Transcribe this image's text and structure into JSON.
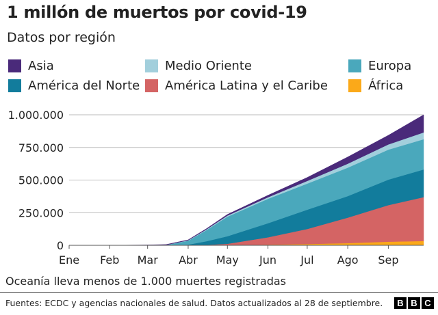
{
  "title": "1 millón de muertos por covid-19",
  "subtitle": "Datos por región",
  "note": "Oceanía lleva menos de 1.000 muertes registradas",
  "source": "Fuentes: ECDC y agencias nacionales de salud. Datos actualizados al 28 de septiembre.",
  "logo": [
    "B",
    "B",
    "C"
  ],
  "chart_data": {
    "type": "area",
    "stacked": true,
    "title": "1 millón de muertos por covid-19",
    "subtitle": "Datos por región",
    "x": [
      "2020-01-01",
      "2020-02-01",
      "2020-03-01",
      "2020-03-15",
      "2020-04-01",
      "2020-04-15",
      "2020-05-01",
      "2020-06-01",
      "2020-07-01",
      "2020-08-01",
      "2020-09-01",
      "2020-09-28"
    ],
    "x_ticks": [
      "Ene",
      "Feb",
      "Mar",
      "Abr",
      "May",
      "Jun",
      "Jul",
      "Ago",
      "Sep"
    ],
    "y_ticks": [
      "0",
      "250.000",
      "500.000",
      "750.000",
      "1.000.000"
    ],
    "ylim": [
      0,
      1000000
    ],
    "grid": true,
    "legend_placement": "top",
    "series": [
      {
        "name": "África",
        "color": "#fba919",
        "values": [
          0,
          0,
          0,
          0,
          100,
          500,
          1500,
          5000,
          10000,
          17000,
          28000,
          33000
        ]
      },
      {
        "name": "América Latina y el Caribe",
        "color": "#d46464",
        "values": [
          0,
          0,
          0,
          0,
          500,
          3000,
          10000,
          56000,
          115000,
          195000,
          280000,
          336000
        ]
      },
      {
        "name": "América del Norte",
        "color": "#127c9c",
        "values": [
          0,
          0,
          0,
          100,
          4500,
          28000,
          58000,
          108000,
          148000,
          165000,
          195000,
          212000
        ]
      },
      {
        "name": "Europa",
        "color": "#4aa8bc",
        "values": [
          0,
          0,
          0,
          1800,
          30000,
          85000,
          150000,
          187000,
          200000,
          218000,
          230000,
          232000
        ]
      },
      {
        "name": "Medio Oriente",
        "color": "#a2cfdc",
        "values": [
          0,
          0,
          10,
          700,
          3000,
          5500,
          8000,
          12000,
          20000,
          30000,
          40000,
          52000
        ]
      },
      {
        "name": "Asia",
        "color": "#4a2a7a",
        "values": [
          0,
          0,
          2900,
          3200,
          4000,
          6000,
          9000,
          15000,
          27000,
          52000,
          70000,
          135000
        ]
      }
    ]
  },
  "legend": [
    {
      "label": "Asia",
      "color": "#4a2a7a"
    },
    {
      "label": "Medio Oriente",
      "color": "#a2cfdc"
    },
    {
      "label": "Europa",
      "color": "#4aa8bc"
    },
    {
      "label": "América del Norte",
      "color": "#127c9c"
    },
    {
      "label": "América Latina y el Caribe",
      "color": "#d46464"
    },
    {
      "label": "África",
      "color": "#fba919"
    }
  ]
}
